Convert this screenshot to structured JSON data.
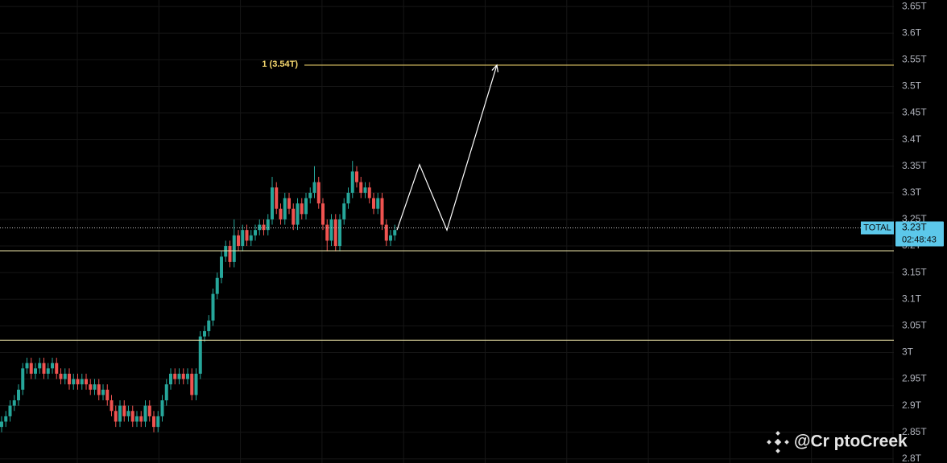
{
  "chart_data": {
    "type": "candlestick",
    "up_color": "#26a69a",
    "down_color": "#ef5350",
    "open": [
      2.86,
      2.87,
      2.88,
      2.9,
      2.91,
      2.93,
      2.97,
      2.98,
      2.96,
      2.97,
      2.98,
      2.96,
      2.97,
      2.98,
      2.96,
      2.95,
      2.96,
      2.94,
      2.95,
      2.94,
      2.95,
      2.94,
      2.93,
      2.94,
      2.92,
      2.93,
      2.91,
      2.89,
      2.87,
      2.9,
      2.88,
      2.89,
      2.87,
      2.88,
      2.87,
      2.9,
      2.88,
      2.86,
      2.88,
      2.91,
      2.94,
      2.96,
      2.95,
      2.96,
      2.95,
      2.96,
      2.92,
      2.96,
      3.03,
      3.04,
      3.06,
      3.11,
      3.14,
      3.18,
      3.2,
      3.17,
      3.22,
      3.2,
      3.23,
      3.21,
      3.22,
      3.23,
      3.24,
      3.23,
      3.25,
      3.31,
      3.27,
      3.25,
      3.29,
      3.27,
      3.24,
      3.28,
      3.26,
      3.29,
      3.3,
      3.32,
      3.28,
      3.24,
      3.21,
      3.25,
      3.2,
      3.25,
      3.28,
      3.3,
      3.34,
      3.32,
      3.3,
      3.31,
      3.29,
      3.27,
      3.29,
      3.24,
      3.21,
      3.22
    ],
    "high": [
      2.88,
      2.89,
      2.91,
      2.92,
      2.94,
      2.98,
      2.99,
      2.99,
      2.98,
      2.99,
      2.99,
      2.98,
      2.99,
      2.99,
      2.97,
      2.97,
      2.97,
      2.96,
      2.96,
      2.96,
      2.96,
      2.95,
      2.95,
      2.95,
      2.94,
      2.94,
      2.92,
      2.9,
      2.91,
      2.91,
      2.9,
      2.9,
      2.89,
      2.89,
      2.91,
      2.91,
      2.89,
      2.89,
      2.92,
      2.95,
      2.97,
      2.97,
      2.97,
      2.97,
      2.97,
      2.97,
      2.97,
      3.04,
      3.05,
      3.07,
      3.12,
      3.15,
      3.19,
      3.21,
      3.21,
      3.25,
      3.23,
      3.24,
      3.24,
      3.23,
      3.24,
      3.25,
      3.25,
      3.26,
      3.33,
      3.32,
      3.28,
      3.3,
      3.3,
      3.28,
      3.29,
      3.29,
      3.3,
      3.31,
      3.35,
      3.33,
      3.29,
      3.25,
      3.26,
      3.26,
      3.26,
      3.29,
      3.31,
      3.36,
      3.35,
      3.33,
      3.32,
      3.32,
      3.3,
      3.3,
      3.3,
      3.25,
      3.23,
      3.24
    ],
    "low": [
      2.85,
      2.86,
      2.87,
      2.89,
      2.9,
      2.92,
      2.96,
      2.95,
      2.95,
      2.96,
      2.95,
      2.95,
      2.96,
      2.95,
      2.94,
      2.94,
      2.93,
      2.93,
      2.93,
      2.93,
      2.93,
      2.92,
      2.92,
      2.91,
      2.91,
      2.9,
      2.88,
      2.86,
      2.86,
      2.87,
      2.87,
      2.86,
      2.86,
      2.86,
      2.86,
      2.87,
      2.85,
      2.85,
      2.87,
      2.9,
      2.93,
      2.94,
      2.94,
      2.94,
      2.94,
      2.91,
      2.91,
      2.95,
      3.02,
      3.03,
      3.05,
      3.1,
      3.13,
      3.17,
      3.16,
      3.16,
      3.19,
      3.19,
      3.2,
      3.2,
      3.21,
      3.22,
      3.22,
      3.22,
      3.24,
      3.26,
      3.24,
      3.24,
      3.26,
      3.23,
      3.23,
      3.25,
      3.25,
      3.28,
      3.29,
      3.27,
      3.23,
      3.19,
      3.2,
      3.19,
      3.19,
      3.24,
      3.27,
      3.29,
      3.31,
      3.29,
      3.29,
      3.28,
      3.26,
      3.26,
      3.23,
      3.2,
      3.2,
      3.21
    ],
    "close": [
      2.87,
      2.88,
      2.9,
      2.91,
      2.93,
      2.97,
      2.98,
      2.96,
      2.97,
      2.98,
      2.96,
      2.97,
      2.98,
      2.96,
      2.95,
      2.96,
      2.94,
      2.95,
      2.94,
      2.95,
      2.94,
      2.93,
      2.94,
      2.92,
      2.93,
      2.91,
      2.89,
      2.87,
      2.9,
      2.88,
      2.89,
      2.87,
      2.88,
      2.87,
      2.9,
      2.88,
      2.86,
      2.88,
      2.91,
      2.94,
      2.96,
      2.95,
      2.96,
      2.95,
      2.96,
      2.92,
      2.96,
      3.03,
      3.04,
      3.06,
      3.11,
      3.14,
      3.18,
      3.2,
      3.17,
      3.22,
      3.2,
      3.23,
      3.21,
      3.22,
      3.23,
      3.24,
      3.23,
      3.25,
      3.31,
      3.27,
      3.25,
      3.29,
      3.27,
      3.24,
      3.28,
      3.26,
      3.29,
      3.3,
      3.32,
      3.28,
      3.24,
      3.21,
      3.25,
      3.2,
      3.25,
      3.28,
      3.3,
      3.34,
      3.32,
      3.3,
      3.31,
      3.29,
      3.27,
      3.29,
      3.24,
      3.21,
      3.22,
      3.23
    ],
    "ylim": [
      2.7922,
      3.6623
    ],
    "yticks": [
      {
        "value": 2.8,
        "label": "2.8T"
      },
      {
        "value": 2.85,
        "label": "2.85T"
      },
      {
        "value": 2.9,
        "label": "2.9T"
      },
      {
        "value": 2.95,
        "label": "2.95T"
      },
      {
        "value": 3.0,
        "label": "3T"
      },
      {
        "value": 3.05,
        "label": "3.05T"
      },
      {
        "value": 3.1,
        "label": "3.1T"
      },
      {
        "value": 3.15,
        "label": "3.15T"
      },
      {
        "value": 3.2,
        "label": "3.2T"
      },
      {
        "value": 3.25,
        "label": "3.25T"
      },
      {
        "value": 3.3,
        "label": "3.3T"
      },
      {
        "value": 3.35,
        "label": "3.35T"
      },
      {
        "value": 3.4,
        "label": "3.4T"
      },
      {
        "value": 3.45,
        "label": "3.45T"
      },
      {
        "value": 3.5,
        "label": "3.5T"
      },
      {
        "value": 3.55,
        "label": "3.55T"
      },
      {
        "value": 3.6,
        "label": "3.6T"
      },
      {
        "value": 3.65,
        "label": "3.65T"
      }
    ],
    "grid": true,
    "levels": [
      {
        "value": 3.54,
        "label": "1 (3.54T)",
        "color": "#f5d76e"
      },
      {
        "value": 3.191,
        "color": "#eee6a8"
      },
      {
        "value": 3.023,
        "color": "#eee6a8"
      }
    ],
    "projection": {
      "values": [
        3.23,
        3.353,
        3.23,
        3.54
      ],
      "color": "#ffffff"
    },
    "price": {
      "value": 3.234,
      "name": "TOTAL",
      "label": "3.23T",
      "countdown": "02:48:43",
      "color": "#5cc8ea"
    },
    "watermark": "@Cr  ptoCreek"
  }
}
